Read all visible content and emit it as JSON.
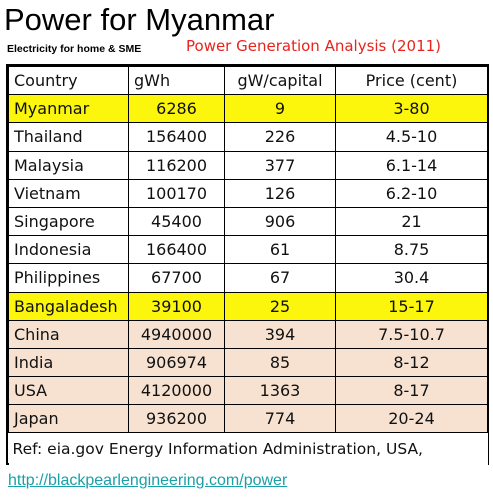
{
  "title": "Power for Myanmar",
  "subtitle": "Electricity for home & SME",
  "analysis_title": "Power Generation Analysis (2011)",
  "colors": {
    "highlight": "#fbf60b",
    "peach": "#f7e2d2",
    "analysis_red": "#e8231c",
    "link": "#1aa0a8"
  },
  "table": {
    "headers": [
      "Country",
      "gWh",
      "gW/capital",
      "Price (cent)"
    ],
    "rows": [
      {
        "cells": [
          "Myanmar",
          "6286",
          "9",
          "3-80"
        ],
        "style": "hl"
      },
      {
        "cells": [
          "Thailand",
          "156400",
          "226",
          "4.5-10"
        ],
        "style": "white"
      },
      {
        "cells": [
          "Malaysia",
          "116200",
          "377",
          "6.1-14"
        ],
        "style": "white"
      },
      {
        "cells": [
          "Vietnam",
          "100170",
          "126",
          "6.2-10"
        ],
        "style": "white"
      },
      {
        "cells": [
          "Singapore",
          "45400",
          "906",
          "21"
        ],
        "style": "white"
      },
      {
        "cells": [
          "Indonesia",
          "166400",
          "61",
          "8.75"
        ],
        "style": "white"
      },
      {
        "cells": [
          "Philippines",
          "67700",
          "67",
          "30.4"
        ],
        "style": "white"
      },
      {
        "cells": [
          "Bangaladesh",
          "39100",
          "25",
          "15-17"
        ],
        "style": "hl"
      },
      {
        "cells": [
          "China",
          "4940000",
          "394",
          "7.5-10.7"
        ],
        "style": "peach"
      },
      {
        "cells": [
          "India",
          "906974",
          "85",
          "8-12"
        ],
        "style": "peach"
      },
      {
        "cells": [
          "USA",
          "4120000",
          "1363",
          "8-17"
        ],
        "style": "peach"
      },
      {
        "cells": [
          "Japan",
          "936200",
          "774",
          "20-24"
        ],
        "style": "peach"
      }
    ],
    "reference": "Ref: eia.gov  Energy Information Administration, USA,"
  },
  "link_text": "http://blackpearlengineering.com/power"
}
